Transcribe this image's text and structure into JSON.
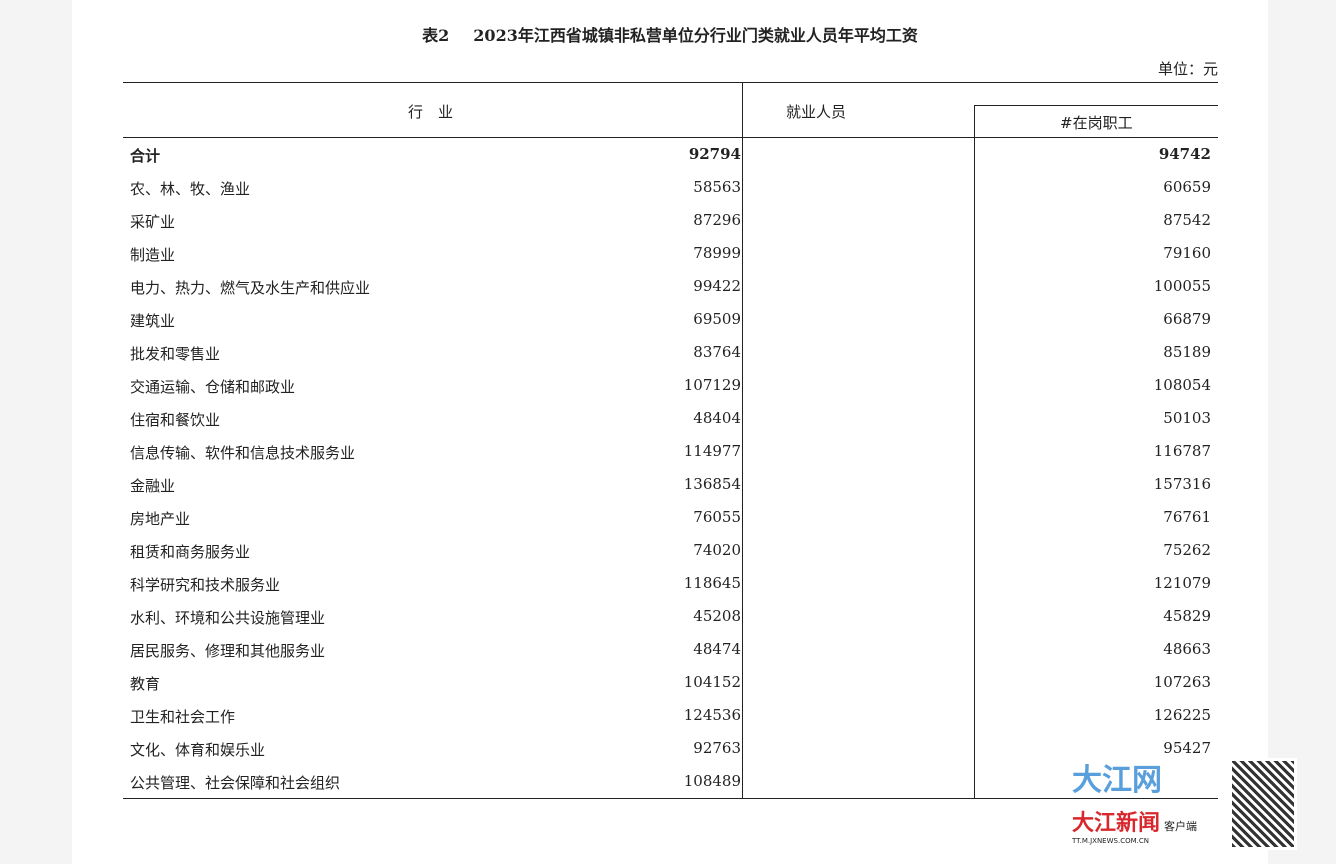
{
  "title": {
    "table_no": "表2",
    "text": "2023年江西省城镇非私营单位分行业门类就业人员年平均工资"
  },
  "unit": "单位：元",
  "headers": {
    "industry": "行　业",
    "employed": "就业人员",
    "on_post": "#在岗职工"
  },
  "rows": [
    {
      "name": "合计",
      "employed": "92794",
      "on_post": "94742"
    },
    {
      "name": "农、林、牧、渔业",
      "employed": "58563",
      "on_post": "60659"
    },
    {
      "name": "采矿业",
      "employed": "87296",
      "on_post": "87542"
    },
    {
      "name": "制造业",
      "employed": "78999",
      "on_post": "79160"
    },
    {
      "name": "电力、热力、燃气及水生产和供应业",
      "employed": "99422",
      "on_post": "100055"
    },
    {
      "name": "建筑业",
      "employed": "69509",
      "on_post": "66879"
    },
    {
      "name": "批发和零售业",
      "employed": "83764",
      "on_post": "85189"
    },
    {
      "name": "交通运输、仓储和邮政业",
      "employed": "107129",
      "on_post": "108054"
    },
    {
      "name": "住宿和餐饮业",
      "employed": "48404",
      "on_post": "50103"
    },
    {
      "name": "信息传输、软件和信息技术服务业",
      "employed": "114977",
      "on_post": "116787"
    },
    {
      "name": "金融业",
      "employed": "136854",
      "on_post": "157316"
    },
    {
      "name": "房地产业",
      "employed": "76055",
      "on_post": "76761"
    },
    {
      "name": "租赁和商务服务业",
      "employed": "74020",
      "on_post": "75262"
    },
    {
      "name": "科学研究和技术服务业",
      "employed": "118645",
      "on_post": "121079"
    },
    {
      "name": "水利、环境和公共设施管理业",
      "employed": "45208",
      "on_post": "45829"
    },
    {
      "name": "居民服务、修理和其他服务业",
      "employed": "48474",
      "on_post": "48663"
    },
    {
      "name": "教育",
      "employed": "104152",
      "on_post": "107263"
    },
    {
      "name": "卫生和社会工作",
      "employed": "124536",
      "on_post": "126225"
    },
    {
      "name": "文化、体育和娱乐业",
      "employed": "92763",
      "on_post": "95427"
    },
    {
      "name": "公共管理、社会保障和社会组织",
      "employed": "108489",
      "on_post": ""
    }
  ],
  "watermark": {
    "brand": "大江网",
    "app": "大江新闻",
    "app_suffix": "客户端",
    "url": "TT.M.JXNEWS.COM.CN"
  }
}
